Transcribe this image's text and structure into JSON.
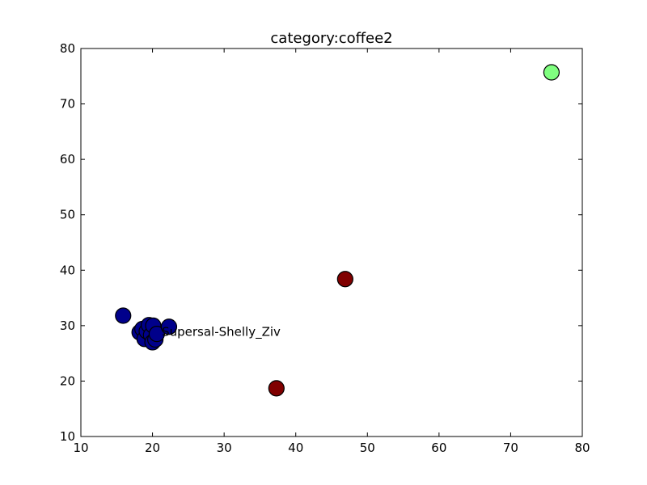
{
  "chart_data": {
    "type": "scatter",
    "title": "category:coffee2",
    "xlabel": "",
    "ylabel": "",
    "xlim": [
      10,
      80
    ],
    "ylim": [
      10,
      80
    ],
    "xticks": [
      10,
      20,
      30,
      40,
      50,
      60,
      70,
      80
    ],
    "yticks": [
      10,
      20,
      30,
      40,
      50,
      60,
      70,
      80
    ],
    "grid": false,
    "colors": {
      "cluster_blue": "#00008b",
      "cluster_red": "#800000",
      "cluster_green": "#80ff80",
      "marker_edge": "#000000"
    },
    "series": [
      {
        "color": "#00008b",
        "points": [
          {
            "x": 15.9,
            "y": 31.8
          },
          {
            "x": 18.2,
            "y": 28.8
          },
          {
            "x": 18.6,
            "y": 29.4
          },
          {
            "x": 18.9,
            "y": 27.6
          },
          {
            "x": 19.2,
            "y": 29.0
          },
          {
            "x": 19.5,
            "y": 30.1
          },
          {
            "x": 19.8,
            "y": 28.3
          },
          {
            "x": 20.0,
            "y": 27.0
          },
          {
            "x": 20.1,
            "y": 30.0
          },
          {
            "x": 20.4,
            "y": 27.5
          },
          {
            "x": 20.6,
            "y": 28.5
          },
          {
            "x": 22.3,
            "y": 29.8
          }
        ]
      },
      {
        "color": "#800000",
        "points": [
          {
            "x": 46.9,
            "y": 38.4
          },
          {
            "x": 37.3,
            "y": 18.7
          }
        ]
      },
      {
        "color": "#80ff80",
        "points": [
          {
            "x": 75.7,
            "y": 75.7
          }
        ]
      }
    ],
    "annotations": [
      {
        "text": "Supersal-Shelly_Ziv",
        "x": 21.3,
        "y": 28.9
      }
    ]
  }
}
